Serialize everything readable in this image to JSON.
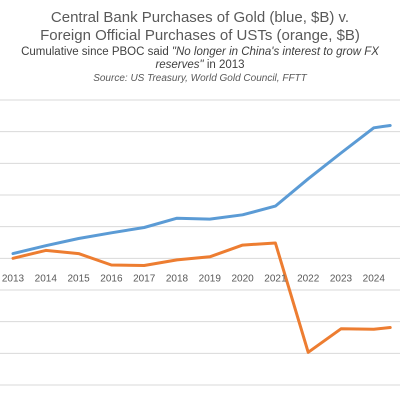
{
  "chart_data": {
    "type": "line",
    "title_line1": "Central Bank Purchases of Gold (blue, $B) v.",
    "title_line2": "Foreign Official Purchases of USTs (orange, $B)",
    "subtitle_prefix": "Cumulative since PBOC said ",
    "subtitle_quote": "\"No longer in China's interest to grow FX reserves\"",
    "subtitle_suffix": " in 2013",
    "subtitle_line1_quote": "\"No longer in China's interest to grow FX",
    "subtitle_line2_quote": "reserves\"",
    "source": "Source: US Treasury, World Gold Council, FFTT",
    "x": [
      "2013",
      "2014",
      "2015",
      "2016",
      "2017",
      "2018",
      "2019",
      "2020",
      "2021",
      "2022",
      "2023",
      "2024"
    ],
    "series": [
      {
        "color": "#5B9BD5",
        "x": [
          2013,
          2014,
          2015,
          2016,
          2017,
          2018,
          2019,
          2020,
          2021,
          2022,
          2023,
          2024,
          2024.5
        ],
        "values": [
          45,
          120,
          188,
          242,
          292,
          380,
          372,
          412,
          495,
          753,
          998,
          1237,
          1258
        ]
      },
      {
        "color": "#ED7D31",
        "x": [
          2013,
          2014,
          2015,
          2016,
          2017,
          2018,
          2019,
          2020,
          2021,
          2022,
          2023,
          2024,
          2024.5
        ],
        "values": [
          0,
          75,
          45,
          -63,
          -68,
          -15,
          15,
          125,
          145,
          -890,
          -668,
          -672,
          -655
        ]
      }
    ],
    "ylim": [
      -1200,
      1500
    ],
    "grid": true,
    "legend": "none"
  },
  "colors": {
    "gridline": "#D9D9D9",
    "axis_text": "#595959"
  }
}
